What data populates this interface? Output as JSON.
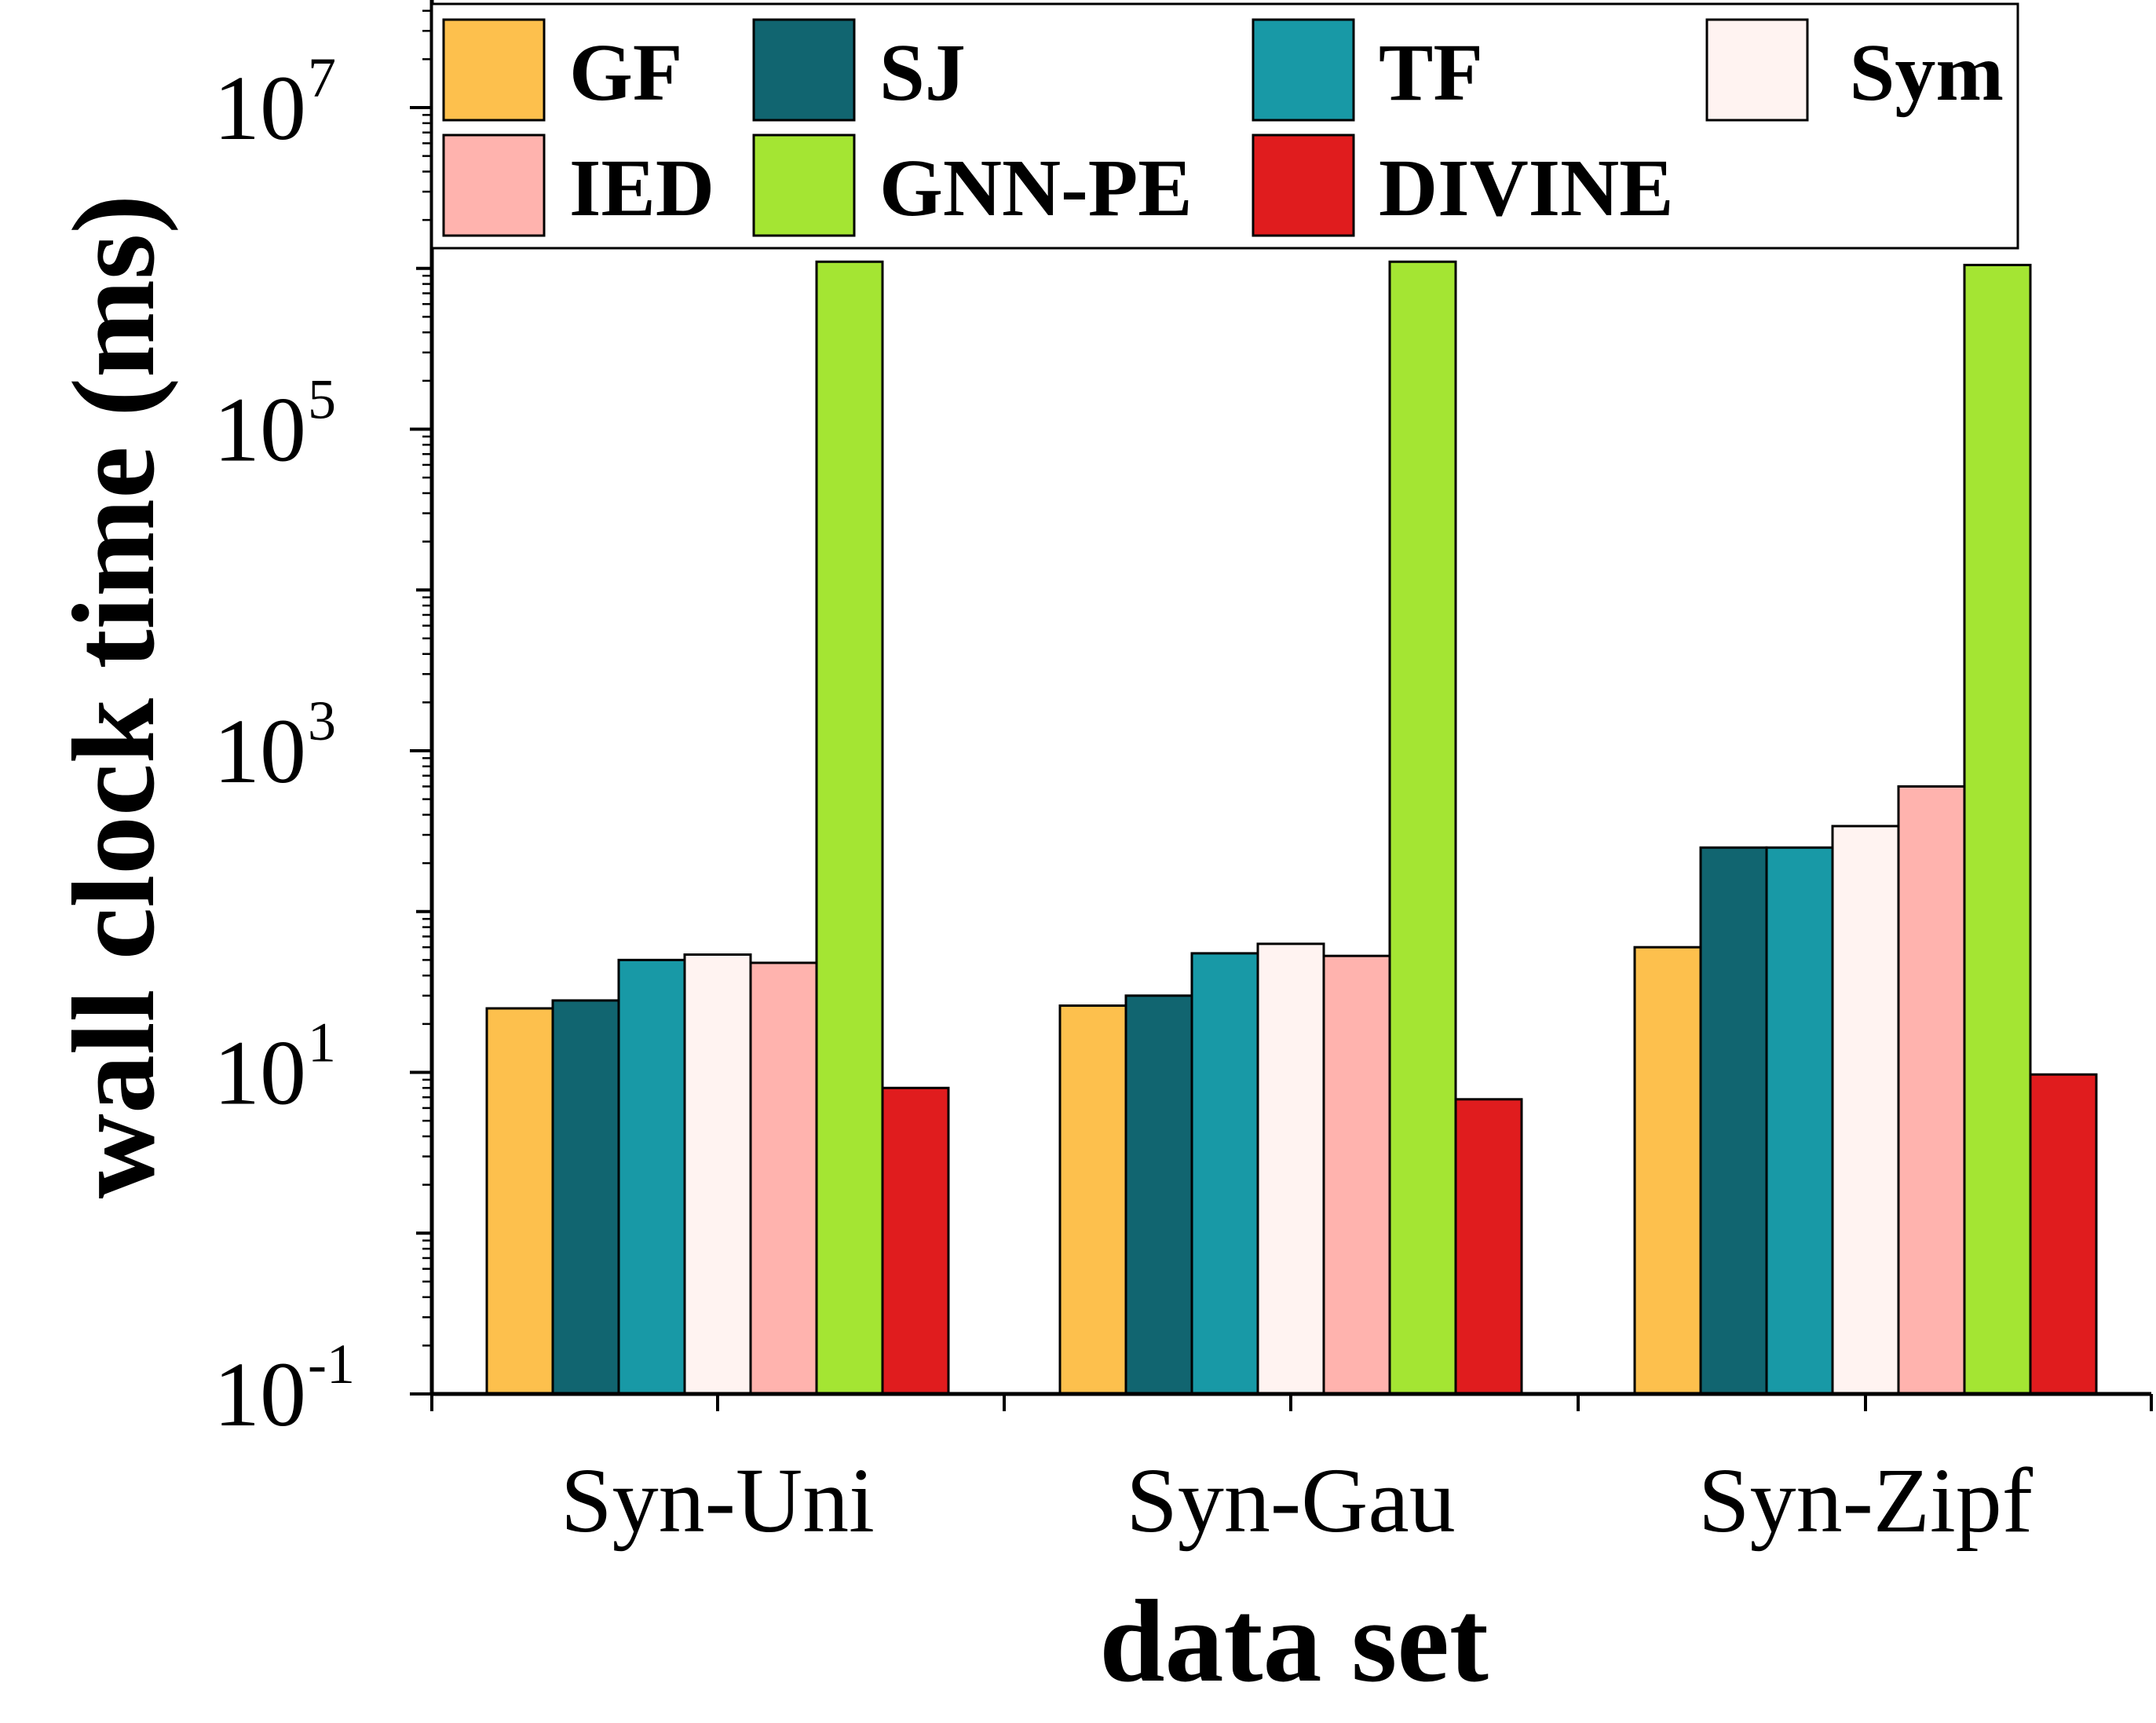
{
  "chart_data": {
    "type": "bar",
    "xlabel": "data set",
    "ylabel": "wall clock time (ms)",
    "yscale": "log",
    "ylim": [
      0.1,
      60000000
    ],
    "yticks": [
      {
        "value": 0.1,
        "base": "10",
        "exp": "-1"
      },
      {
        "value": 10,
        "base": "10",
        "exp": "1"
      },
      {
        "value": 1000,
        "base": "10",
        "exp": "3"
      },
      {
        "value": 100000,
        "base": "10",
        "exp": "5"
      },
      {
        "value": 10000000,
        "base": "10",
        "exp": "7"
      }
    ],
    "categories": [
      "Syn-Uni",
      "Syn-Gau",
      "Syn-Zipf"
    ],
    "series": [
      {
        "name": "GF",
        "color": "#FDC04D",
        "values": [
          25,
          26,
          60
        ]
      },
      {
        "name": "SJ",
        "color": "#116570",
        "values": [
          28,
          30,
          250
        ]
      },
      {
        "name": "TF",
        "color": "#1899A6",
        "values": [
          50,
          55,
          250
        ]
      },
      {
        "name": "Sym",
        "color": "#FFF3F1",
        "values": [
          54,
          63,
          340
        ]
      },
      {
        "name": "IED",
        "color": "#FFB3AE",
        "values": [
          48,
          53,
          600
        ]
      },
      {
        "name": "GNN-PE",
        "color": "#A4E533",
        "values": [
          1100000,
          1100000,
          1050000
        ]
      },
      {
        "name": "DIVINE",
        "color": "#E01C1E",
        "values": [
          8,
          6.8,
          9.7
        ]
      }
    ],
    "legend": {
      "placement": "top",
      "columns": 4
    },
    "grid": false
  }
}
